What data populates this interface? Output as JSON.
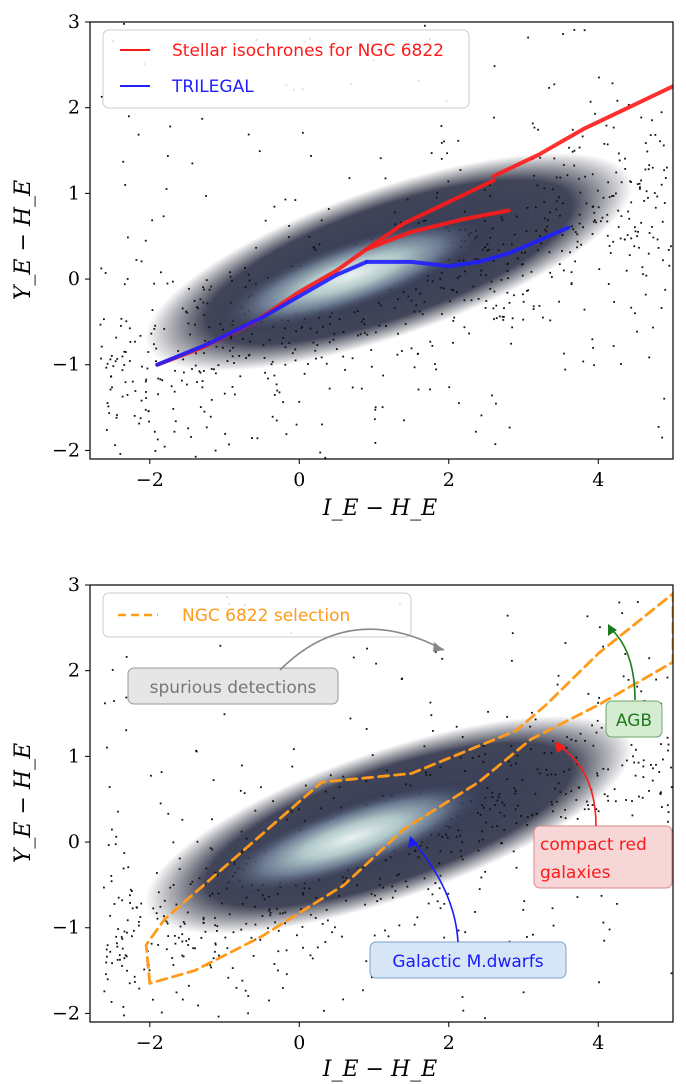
{
  "chart_data": [
    {
      "type": "scatter",
      "panel": "top",
      "xlabel": "I_E − H_E",
      "ylabel": "Y_E − H_E",
      "xlim": [
        -2.8,
        5.0
      ],
      "ylim": [
        -2.1,
        3.0
      ],
      "xticks": [
        -2,
        0,
        2,
        4
      ],
      "yticks": [
        -2,
        -1,
        0,
        1,
        2,
        3
      ],
      "legend": "top-left",
      "grid": false,
      "series": [
        {
          "name": "Stellar isochrones for NGC 6822",
          "color": "#ff1a1a",
          "branches": [
            {
              "x": [
                -1.9,
                -1.3,
                -0.6,
                0.0,
                0.5,
                0.9,
                1.4,
                2.0,
                2.6
              ],
              "y": [
                -1.0,
                -0.8,
                -0.5,
                -0.15,
                0.1,
                0.35,
                0.65,
                0.9,
                1.15
              ]
            },
            {
              "x": [
                0.9,
                1.5,
                2.2,
                2.8
              ],
              "y": [
                0.35,
                0.55,
                0.7,
                0.8
              ]
            },
            {
              "x": [
                2.6,
                3.2,
                3.8,
                4.4,
                5.0
              ],
              "y": [
                1.2,
                1.45,
                1.75,
                2.0,
                2.25
              ]
            }
          ]
        },
        {
          "name": "TRILEGAL",
          "color": "#1f1fff",
          "branches": [
            {
              "x": [
                -1.9,
                -1.2,
                -0.5,
                0.0,
                0.5,
                0.9
              ],
              "y": [
                -1.0,
                -0.75,
                -0.45,
                -0.2,
                0.05,
                0.2
              ]
            },
            {
              "x": [
                0.9,
                1.5,
                2.0,
                2.4
              ],
              "y": [
                0.2,
                0.2,
                0.15,
                0.2
              ]
            },
            {
              "x": [
                2.4,
                2.8,
                3.2,
                3.6
              ],
              "y": [
                0.2,
                0.3,
                0.45,
                0.6
              ]
            }
          ]
        }
      ],
      "density_ridge": {
        "x": [
          -2.0,
          5.0
        ],
        "y": [
          -1.05,
          1.05
        ]
      }
    },
    {
      "type": "scatter",
      "panel": "bottom",
      "xlabel": "I_E − H_E",
      "ylabel": "Y_E − H_E",
      "xlim": [
        -2.8,
        5.0
      ],
      "ylim": [
        -2.1,
        3.0
      ],
      "xticks": [
        -2,
        0,
        2,
        4
      ],
      "yticks": [
        -2,
        -1,
        0,
        1,
        2,
        3
      ],
      "legend": "top-left",
      "grid": false,
      "series": [
        {
          "name": "NGC 6822 selection",
          "color": "#ff9a1a",
          "style": "dashed",
          "x": [
            -2.0,
            -2.05,
            -1.8,
            0.3,
            1.5,
            2.9,
            3.3,
            4.0,
            5.0,
            5.0,
            4.0,
            3.1,
            2.4,
            1.4,
            0.6,
            -0.5,
            -1.4,
            -2.0
          ],
          "y": [
            -1.65,
            -1.2,
            -0.9,
            0.7,
            0.8,
            1.3,
            1.6,
            2.2,
            2.9,
            2.1,
            1.6,
            1.2,
            0.7,
            0.15,
            -0.5,
            -1.1,
            -1.5,
            -1.65
          ]
        }
      ],
      "density_ridge": {
        "x": [
          -2.0,
          5.0
        ],
        "y": [
          -1.05,
          1.05
        ]
      },
      "annotations": [
        {
          "text": "spurious detections",
          "color": "#777777",
          "fill": "#e6e6e6",
          "target": [
            2.0,
            2.2
          ]
        },
        {
          "text": "AGB",
          "color": "#1e7a1e",
          "fill": "#d6ecd2",
          "target": [
            4.1,
            1.9
          ]
        },
        {
          "text": "compact red galaxies",
          "lines": [
            "compact red",
            "galaxies"
          ],
          "color": "#ff1a1a",
          "fill": "#f6d6d6",
          "target": [
            3.45,
            0.8
          ]
        },
        {
          "text": "Galactic M.dwarfs",
          "color": "#1a1aff",
          "fill": "#d6e6f6",
          "target": [
            1.5,
            -0.05
          ]
        }
      ]
    }
  ],
  "tick_labels": {
    "x": [
      "−2",
      "0",
      "2",
      "4"
    ],
    "y": [
      "−2",
      "−1",
      "0",
      "1",
      "2",
      "3"
    ]
  }
}
